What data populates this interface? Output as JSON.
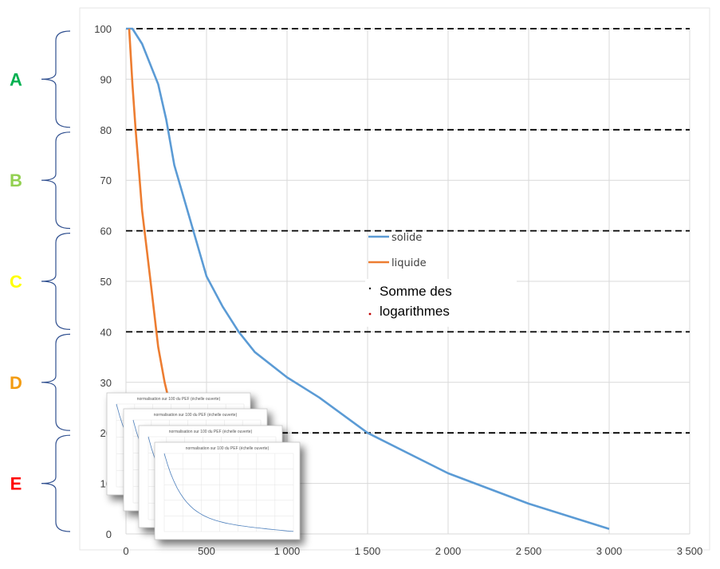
{
  "chart_data": {
    "type": "line",
    "x_ticks": [
      "0",
      "500",
      "1 000",
      "1 500",
      "2 000",
      "2 500",
      "3 000",
      "3 500"
    ],
    "y_ticks": [
      "0",
      "10",
      "20",
      "30",
      "40",
      "50",
      "60",
      "70",
      "80",
      "90",
      "100"
    ],
    "xlim": [
      0,
      3500
    ],
    "ylim": [
      0,
      100
    ],
    "grid": true,
    "series": [
      {
        "name": "solide",
        "color": "#5b9bd5",
        "points": [
          [
            0,
            100
          ],
          [
            40,
            100
          ],
          [
            100,
            97
          ],
          [
            200,
            89
          ],
          [
            250,
            82
          ],
          [
            300,
            73
          ],
          [
            400,
            62
          ],
          [
            500,
            51
          ],
          [
            600,
            45
          ],
          [
            700,
            40
          ],
          [
            800,
            36
          ],
          [
            1000,
            31
          ],
          [
            1200,
            27
          ],
          [
            1500,
            20
          ],
          [
            2000,
            12
          ],
          [
            2500,
            6
          ],
          [
            3000,
            1
          ]
        ]
      },
      {
        "name": "liquide",
        "color": "#ed7d31",
        "points": [
          [
            20,
            100
          ],
          [
            40,
            89
          ],
          [
            60,
            80
          ],
          [
            80,
            72
          ],
          [
            100,
            64
          ],
          [
            130,
            56
          ],
          [
            160,
            48
          ],
          [
            200,
            37
          ],
          [
            240,
            30
          ],
          [
            270,
            26
          ]
        ]
      }
    ],
    "thresholds": [
      100,
      80,
      60,
      40,
      20
    ],
    "grade_bands": [
      {
        "label": "A",
        "color": "#00b050",
        "from": 80,
        "to": 100
      },
      {
        "label": "B",
        "color": "#92d050",
        "from": 60,
        "to": 80
      },
      {
        "label": "C",
        "color": "#ffff00",
        "from": 40,
        "to": 60
      },
      {
        "label": "D",
        "color": "#f39c12",
        "from": 20,
        "to": 40
      },
      {
        "label": "E",
        "color": "#ff0000",
        "from": 0,
        "to": 20
      }
    ],
    "legend": {
      "placement": "center",
      "entries": [
        "solide",
        "liquide"
      ]
    },
    "annotation": {
      "line1": "Somme des",
      "line2": "logarithmes"
    },
    "thumbnail_title": "normalisation sur 100 du PEF (échelle ouverte)"
  }
}
